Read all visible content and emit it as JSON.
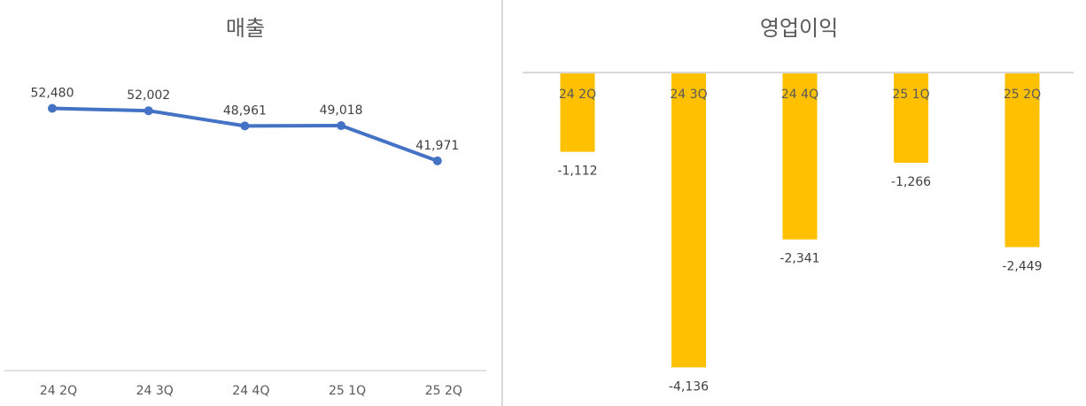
{
  "chart_data": [
    {
      "type": "line",
      "title": "매출",
      "categories": [
        "24 2Q",
        "24 3Q",
        "24 4Q",
        "25 1Q",
        "25 2Q"
      ],
      "values": [
        52480,
        52002,
        48961,
        49018,
        41971
      ],
      "data_labels": [
        "52,480",
        "52,002",
        "48,961",
        "49,018",
        "41,971"
      ],
      "ylim": [
        0,
        60000
      ],
      "xlabel": "",
      "ylabel": "",
      "grid": false,
      "color": "#4472C4"
    },
    {
      "type": "bar",
      "title": "영업이익",
      "categories": [
        "24 2Q",
        "24 3Q",
        "24 4Q",
        "25 1Q",
        "25 2Q"
      ],
      "values": [
        -1112,
        -4136,
        -2341,
        -1266,
        -2449
      ],
      "data_labels": [
        "-1,112",
        "-4,136",
        "-2,341",
        "-1,266",
        "-2,449"
      ],
      "ylim": [
        -5000,
        0
      ],
      "xlabel": "",
      "ylabel": "",
      "grid": false,
      "color": "#FFC000"
    }
  ]
}
